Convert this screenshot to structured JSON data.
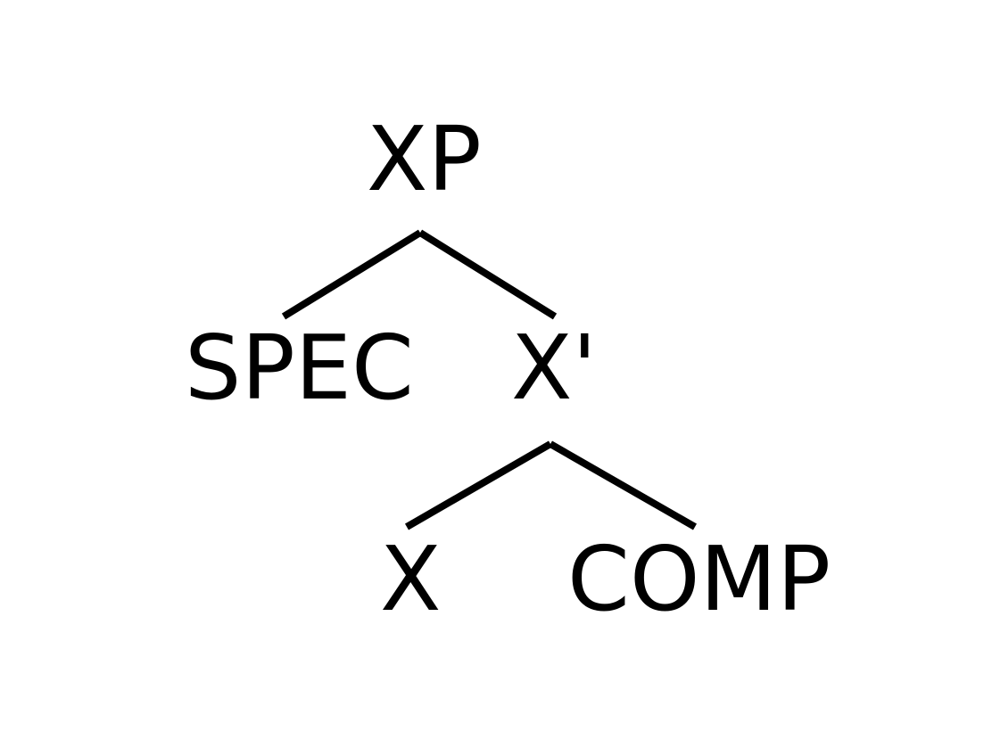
{
  "diagram": {
    "nodes": {
      "xp": "XP",
      "spec": "SPEC",
      "x_bar": "X'",
      "x": "X",
      "comp": "COMP"
    },
    "edges": [
      {
        "from": "XP",
        "to": "SPEC"
      },
      {
        "from": "XP",
        "to": "X'"
      },
      {
        "from": "X'",
        "to": "X"
      },
      {
        "from": "X'",
        "to": "COMP"
      }
    ],
    "colors": {
      "ink": "#000000",
      "background": "#ffffff"
    }
  }
}
